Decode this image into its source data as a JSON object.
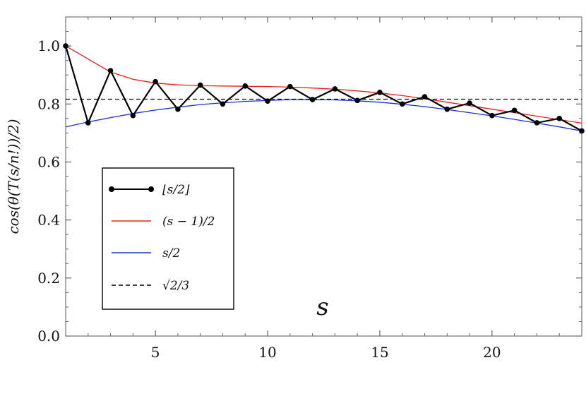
{
  "chart_data": {
    "type": "line",
    "xlabel": "s",
    "ylabel": "cos(θ(T(s/n!))/2)",
    "xlim": [
      1,
      24
    ],
    "ylim": [
      0,
      1.1
    ],
    "x_ticks": [
      "5",
      "10",
      "15",
      "20"
    ],
    "y_ticks": [
      "0.0",
      "0.2",
      "0.4",
      "0.6",
      "0.8",
      "1.0"
    ],
    "grid": false,
    "legend_position": "lower-left",
    "series": [
      {
        "name": "⌊s/2⌋",
        "color": "#000000",
        "markers": true,
        "x": [
          1,
          2,
          3,
          4,
          5,
          6,
          7,
          8,
          9,
          10,
          11,
          12,
          13,
          14,
          15,
          16,
          17,
          18,
          19,
          20,
          21,
          22,
          23,
          24
        ],
        "values": [
          1.0,
          0.735,
          0.915,
          0.76,
          0.877,
          0.782,
          0.865,
          0.8,
          0.862,
          0.81,
          0.86,
          0.815,
          0.852,
          0.812,
          0.84,
          0.8,
          0.825,
          0.782,
          0.803,
          0.76,
          0.778,
          0.735,
          0.75,
          0.707
        ]
      },
      {
        "name": "(s − 1)/2",
        "color": "#e8201a",
        "markers": false,
        "x": [
          1,
          2,
          3,
          4,
          5,
          6,
          7,
          8,
          9,
          10,
          11,
          12,
          13,
          14,
          15,
          16,
          17,
          18,
          19,
          20,
          21,
          22,
          23,
          24
        ],
        "values": [
          1.0,
          0.955,
          0.91,
          0.885,
          0.872,
          0.866,
          0.863,
          0.862,
          0.861,
          0.86,
          0.858,
          0.855,
          0.851,
          0.845,
          0.838,
          0.829,
          0.818,
          0.806,
          0.794,
          0.782,
          0.77,
          0.758,
          0.746,
          0.734
        ]
      },
      {
        "name": "s/2",
        "color": "#1c2fd0",
        "markers": false,
        "x": [
          1,
          2,
          3,
          4,
          5,
          6,
          7,
          8,
          9,
          10,
          11,
          12,
          13,
          14,
          15,
          16,
          17,
          18,
          19,
          20,
          21,
          22,
          23,
          24
        ],
        "values": [
          0.721,
          0.738,
          0.753,
          0.767,
          0.779,
          0.789,
          0.798,
          0.804,
          0.809,
          0.812,
          0.815,
          0.815,
          0.814,
          0.811,
          0.806,
          0.799,
          0.791,
          0.781,
          0.77,
          0.759,
          0.747,
          0.734,
          0.721,
          0.707
        ]
      },
      {
        "name": "√2/3",
        "color": "#000000",
        "dashed": true,
        "markers": false,
        "x": [
          1,
          24
        ],
        "values": [
          0.8165,
          0.8165
        ]
      }
    ]
  }
}
